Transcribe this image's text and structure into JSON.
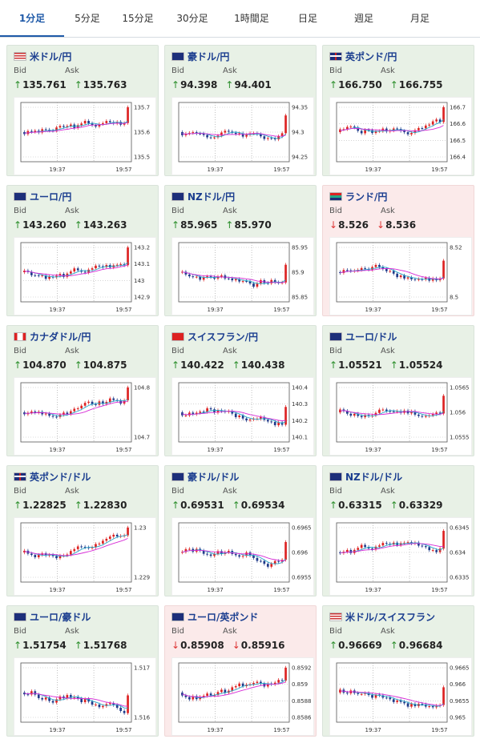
{
  "tabs": [
    "1分足",
    "5分足",
    "15分足",
    "30分足",
    "1時間足",
    "日足",
    "週足",
    "月足"
  ],
  "active_tab": 0,
  "bid_label": "Bid",
  "ask_label": "Ask",
  "time_ticks": [
    "19:37",
    "19:57"
  ],
  "cards": [
    {
      "name": "米ドル/円",
      "flag": "us-flag",
      "dir": "up",
      "bid": "135.761",
      "ask": "135.763",
      "yticks": [
        "135.7",
        "135.6",
        "135.5"
      ]
    },
    {
      "name": "豪ドル/円",
      "flag": "au-flag",
      "dir": "up",
      "bid": "94.398",
      "ask": "94.401",
      "yticks": [
        "94.35",
        "94.3",
        "94.25"
      ]
    },
    {
      "name": "英ポンド/円",
      "flag": "gb-flag",
      "dir": "up",
      "bid": "166.750",
      "ask": "166.755",
      "yticks": [
        "166.7",
        "166.6",
        "166.5",
        "166.4"
      ]
    },
    {
      "name": "ユーロ/円",
      "flag": "eu-flag",
      "dir": "up",
      "bid": "143.260",
      "ask": "143.263",
      "yticks": [
        "143.2",
        "143.1",
        "143",
        "142.9"
      ]
    },
    {
      "name": "NZドル/円",
      "flag": "nz-flag",
      "dir": "up",
      "bid": "85.965",
      "ask": "85.970",
      "yticks": [
        "85.95",
        "85.9",
        "85.85"
      ]
    },
    {
      "name": "ランド/円",
      "flag": "za-flag",
      "dir": "down",
      "bid": "8.526",
      "ask": "8.536",
      "yticks": [
        "8.52",
        "8.5"
      ]
    },
    {
      "name": "カナダドル/円",
      "flag": "ca-flag",
      "dir": "up",
      "bid": "104.870",
      "ask": "104.875",
      "yticks": [
        "104.8",
        "104.7"
      ]
    },
    {
      "name": "スイスフラン/円",
      "flag": "ch-flag",
      "dir": "up",
      "bid": "140.422",
      "ask": "140.438",
      "yticks": [
        "140.4",
        "140.3",
        "140.2",
        "140.1"
      ]
    },
    {
      "name": "ユーロ/ドル",
      "flag": "eu-flag",
      "dir": "up",
      "bid": "1.05521",
      "ask": "1.05524",
      "yticks": [
        "1.0565",
        "1.056",
        "1.0555"
      ]
    },
    {
      "name": "英ポンド/ドル",
      "flag": "gb-flag",
      "dir": "up",
      "bid": "1.22825",
      "ask": "1.22830",
      "yticks": [
        "1.23",
        "1.229"
      ]
    },
    {
      "name": "豪ドル/ドル",
      "flag": "au-flag",
      "dir": "up",
      "bid": "0.69531",
      "ask": "0.69534",
      "yticks": [
        "0.6965",
        "0.696",
        "0.6955"
      ]
    },
    {
      "name": "NZドル/ドル",
      "flag": "nz-flag",
      "dir": "up",
      "bid": "0.63315",
      "ask": "0.63329",
      "yticks": [
        "0.6345",
        "0.634",
        "0.6335"
      ]
    },
    {
      "name": "ユーロ/豪ドル",
      "flag": "eu-flag",
      "dir": "up",
      "bid": "1.51754",
      "ask": "1.51768",
      "yticks": [
        "1.517",
        "1.516"
      ]
    },
    {
      "name": "ユーロ/英ポンド",
      "flag": "eu-flag",
      "dir": "down",
      "bid": "0.85908",
      "ask": "0.85916",
      "yticks": [
        "0.8592",
        "0.859",
        "0.8588",
        "0.8586"
      ]
    },
    {
      "name": "米ドル/スイスフラン",
      "flag": "us-flag",
      "dir": "up",
      "bid": "0.96669",
      "ask": "0.96684",
      "yticks": [
        "0.9665",
        "0.966",
        "0.9655",
        "0.965"
      ]
    }
  ],
  "colors": {
    "up_bg": "#e8f1e6",
    "down_bg": "#fbeaea",
    "candle_up": "#d22",
    "candle_down": "#1f3a8a",
    "ma_fast": "#26a7c9",
    "ma_slow": "#d62bd6",
    "pair_text": "#1a3d8f"
  }
}
